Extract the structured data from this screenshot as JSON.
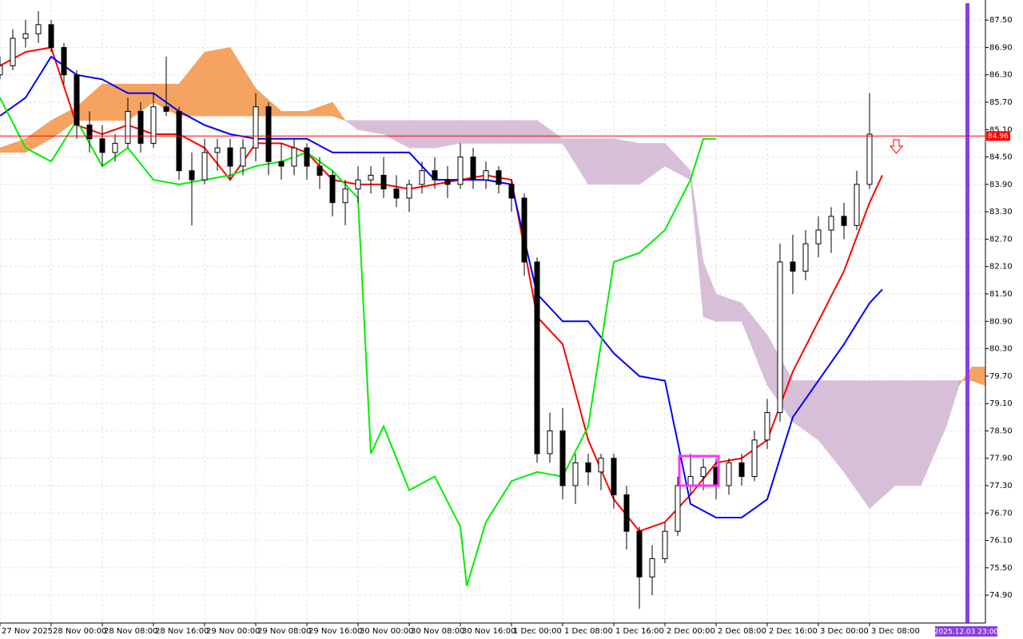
{
  "chart_data": {
    "type": "candlestick",
    "x": [
      0,
      2,
      4,
      6,
      8,
      10,
      12,
      14,
      16,
      18,
      20,
      22,
      24,
      26,
      28,
      30,
      32,
      34,
      36,
      38,
      40,
      42,
      44,
      46,
      48,
      50,
      52,
      54,
      56,
      58,
      60,
      62,
      64,
      66,
      68,
      70,
      72,
      74,
      76,
      78,
      80,
      82,
      84,
      86,
      88,
      90,
      92,
      94,
      96,
      98,
      100,
      102,
      104,
      106,
      108,
      110,
      112,
      114,
      116,
      118,
      120,
      122,
      124,
      126,
      128,
      130,
      132,
      134,
      136
    ],
    "open": [
      86.3,
      86.5,
      87.1,
      87.2,
      87.4,
      86.9,
      86.3,
      85.2,
      84.9,
      84.6,
      84.8,
      85.5,
      84.8,
      85.6,
      85.5,
      84.2,
      84.0,
      84.6,
      84.7,
      84.3,
      84.7,
      85.6,
      84.4,
      84.3,
      84.7,
      84.3,
      84.1,
      83.5,
      83.8,
      84.0,
      84.1,
      83.8,
      83.6,
      83.9,
      84.2,
      84.0,
      83.9,
      84.5,
      84.0,
      84.2,
      83.9,
      83.6,
      82.2,
      78.0,
      78.5,
      77.3,
      77.8,
      77.6,
      77.9,
      77.1,
      76.3,
      75.3,
      75.7,
      76.3,
      77.3,
      77.5,
      77.7,
      77.3,
      77.8,
      77.5,
      78.3,
      78.9,
      82.2,
      82.0,
      82.6,
      82.9,
      83.2,
      83.0,
      83.9
    ],
    "high": [
      86.7,
      87.3,
      87.5,
      87.7,
      87.5,
      87.0,
      86.4,
      85.5,
      85.2,
      85.0,
      85.8,
      85.7,
      85.9,
      86.7,
      85.6,
      84.6,
      84.9,
      84.9,
      84.9,
      84.9,
      85.9,
      85.7,
      84.8,
      84.9,
      84.8,
      84.5,
      84.2,
      84.0,
      84.3,
      84.3,
      84.5,
      84.1,
      84.0,
      84.4,
      84.5,
      84.3,
      84.8,
      84.7,
      84.4,
      84.3,
      84.0,
      83.7,
      82.3,
      78.9,
      79.0,
      78.0,
      78.0,
      78.0,
      78.0,
      77.3,
      76.4,
      76.0,
      76.5,
      77.5,
      78.0,
      77.9,
      77.9,
      77.9,
      78.0,
      78.5,
      79.2,
      82.6,
      82.8,
      82.9,
      83.2,
      83.4,
      83.5,
      84.2,
      85.9
    ],
    "low": [
      86.2,
      86.4,
      86.9,
      87.0,
      86.8,
      86.1,
      84.9,
      84.6,
      84.3,
      84.4,
      84.7,
      84.6,
      84.7,
      85.4,
      84.0,
      83.0,
      83.9,
      84.2,
      84.0,
      84.1,
      84.4,
      84.1,
      84.0,
      84.1,
      84.0,
      83.8,
      83.2,
      83.0,
      83.5,
      83.7,
      83.6,
      83.4,
      83.3,
      83.7,
      83.8,
      83.6,
      83.8,
      83.8,
      83.8,
      83.7,
      83.3,
      81.9,
      77.8,
      77.8,
      77.0,
      76.9,
      77.3,
      77.2,
      76.8,
      75.9,
      74.6,
      74.9,
      75.6,
      76.2,
      77.1,
      77.2,
      77.0,
      77.1,
      77.3,
      77.4,
      78.1,
      78.7,
      81.5,
      81.8,
      82.3,
      82.4,
      82.7,
      82.9,
      83.8
    ],
    "close": [
      86.5,
      87.1,
      87.2,
      87.4,
      86.9,
      86.3,
      85.2,
      84.9,
      84.6,
      84.8,
      85.5,
      84.8,
      85.6,
      85.5,
      84.2,
      84.0,
      84.6,
      84.7,
      84.3,
      84.7,
      85.6,
      84.4,
      84.3,
      84.7,
      84.3,
      84.1,
      83.5,
      83.8,
      84.0,
      84.1,
      83.8,
      83.6,
      83.9,
      84.2,
      84.0,
      83.9,
      84.5,
      84.0,
      84.2,
      83.9,
      83.6,
      82.2,
      78.0,
      78.5,
      77.3,
      77.8,
      77.6,
      77.9,
      77.1,
      76.3,
      75.3,
      75.7,
      76.3,
      77.3,
      77.5,
      77.7,
      77.3,
      77.8,
      77.5,
      78.3,
      78.9,
      82.2,
      82.0,
      82.6,
      82.9,
      83.2,
      83.0,
      83.9,
      85.0
    ],
    "bull_color": "#ffffff",
    "bear_color": "#000000",
    "lines": [
      {
        "color": "#ff0000",
        "x": [
          0,
          4,
          8,
          12,
          16,
          20,
          24,
          28,
          32,
          36,
          40,
          44,
          48,
          52,
          56,
          60,
          64,
          68,
          72,
          76,
          80,
          84,
          88,
          92,
          96,
          100,
          104,
          108,
          112,
          116,
          120,
          124,
          128,
          132,
          136,
          138
        ],
        "values": [
          86.5,
          86.8,
          86.9,
          85.2,
          85.0,
          85.2,
          85.0,
          85.0,
          84.7,
          84.0,
          84.8,
          84.8,
          84.6,
          84.0,
          83.9,
          83.9,
          83.8,
          83.9,
          84.0,
          84.1,
          84.0,
          81.0,
          80.4,
          78.3,
          77.0,
          76.3,
          76.5,
          77.1,
          77.8,
          77.9,
          78.3,
          79.8,
          80.9,
          82.0,
          83.5,
          84.1
        ]
      },
      {
        "color": "#0000ff",
        "x": [
          0,
          4,
          8,
          12,
          16,
          20,
          24,
          28,
          32,
          36,
          40,
          44,
          48,
          52,
          56,
          60,
          64,
          68,
          72,
          76,
          80,
          84,
          88,
          92,
          96,
          100,
          104,
          108,
          112,
          116,
          120,
          124,
          128,
          132,
          136,
          138
        ],
        "values": [
          85.4,
          85.8,
          86.7,
          86.3,
          86.2,
          85.9,
          85.9,
          85.5,
          85.2,
          85.0,
          84.9,
          84.9,
          84.9,
          84.6,
          84.6,
          84.6,
          84.6,
          84.0,
          84.0,
          84.0,
          83.9,
          81.5,
          80.9,
          80.9,
          80.2,
          79.7,
          79.6,
          76.9,
          76.6,
          76.6,
          77.0,
          78.8,
          79.6,
          80.4,
          81.3,
          81.6
        ]
      },
      {
        "color": "#00ee00",
        "x": [
          0,
          4,
          8,
          12,
          16,
          20,
          24,
          28,
          32,
          36,
          40,
          44,
          48,
          52,
          56,
          58,
          60,
          64,
          68,
          72,
          73,
          76,
          80,
          84,
          88,
          92,
          96,
          100,
          104,
          108,
          110,
          112
        ],
        "values": [
          85.8,
          84.7,
          84.4,
          85.3,
          84.3,
          84.7,
          84.0,
          83.9,
          84.0,
          84.1,
          84.3,
          84.4,
          84.6,
          84.2,
          83.6,
          78.0,
          78.6,
          77.2,
          77.5,
          76.4,
          75.1,
          76.5,
          77.4,
          77.6,
          77.5,
          78.6,
          82.2,
          82.4,
          82.9,
          84.0,
          84.9,
          84.9
        ]
      }
    ],
    "cloud": {
      "x": [
        0,
        4,
        8,
        12,
        16,
        20,
        24,
        28,
        32,
        36,
        40,
        44,
        48,
        52,
        54,
        56,
        60,
        64,
        68,
        72,
        76,
        80,
        84,
        88,
        92,
        96,
        100,
        104,
        108,
        110,
        112,
        116,
        120,
        124,
        128,
        132,
        136,
        140,
        144,
        148,
        150,
        152,
        154
      ],
      "span_a": [
        84.7,
        84.9,
        85.3,
        85.6,
        86.1,
        86.1,
        86.1,
        86.1,
        86.8,
        86.9,
        86.0,
        85.5,
        85.5,
        85.7,
        85.3,
        85.1,
        85.0,
        84.7,
        84.7,
        84.8,
        84.8,
        84.8,
        84.8,
        84.8,
        83.9,
        83.9,
        83.9,
        84.3,
        84.0,
        81.0,
        80.9,
        80.9,
        79.5,
        78.7,
        78.3,
        77.6,
        76.8,
        77.3,
        77.3,
        78.6,
        79.5,
        79.9,
        79.9
      ],
      "span_b": [
        84.6,
        84.6,
        84.9,
        85.3,
        85.3,
        85.3,
        85.7,
        85.4,
        85.4,
        85.4,
        85.4,
        85.4,
        85.4,
        85.4,
        85.3,
        85.3,
        85.3,
        85.3,
        85.3,
        85.3,
        85.3,
        85.3,
        85.3,
        84.9,
        84.9,
        84.9,
        84.8,
        84.8,
        84.2,
        82.2,
        81.5,
        81.3,
        80.6,
        79.6,
        79.6,
        79.6,
        79.6,
        79.6,
        79.6,
        79.6,
        79.6,
        79.6,
        79.5
      ],
      "up_color": "#f4a460",
      "down_color": "#d8bfd8"
    },
    "xlim": [
      0,
      154.125
    ],
    "ylim": [
      74.29,
      87.94
    ],
    "xticks": [
      {
        "value": 0,
        "label": "27 Nov 2025"
      },
      {
        "value": 8,
        "label": "28 Nov 00:00"
      },
      {
        "value": 16,
        "label": "28 Nov 08:00"
      },
      {
        "value": 24,
        "label": "28 Nov 16:00"
      },
      {
        "value": 32,
        "label": "29 Nov 00:00"
      },
      {
        "value": 40,
        "label": "29 Nov 08:00"
      },
      {
        "value": 48,
        "label": "29 Nov 16:00"
      },
      {
        "value": 56,
        "label": "30 Nov 00:00"
      },
      {
        "value": 64,
        "label": "30 Nov 08:00"
      },
      {
        "value": 72,
        "label": "30 Nov 16:00"
      },
      {
        "value": 80,
        "label": "1 Dec 00:00"
      },
      {
        "value": 88,
        "label": "1 Dec 08:00"
      },
      {
        "value": 96,
        "label": "1 Dec 16:00"
      },
      {
        "value": 104,
        "label": "2 Dec 00:00"
      },
      {
        "value": 112,
        "label": "2 Dec 08:00"
      },
      {
        "value": 120,
        "label": "2 Dec 16:00"
      },
      {
        "value": 128,
        "label": "3 Dec 00:00"
      },
      {
        "value": 136,
        "label": "3 Dec 08:00"
      }
    ],
    "yticks": [
      {
        "value": 74.9,
        "label": "74.90"
      },
      {
        "value": 75.5,
        "label": "75.50"
      },
      {
        "value": 76.1,
        "label": "76.10"
      },
      {
        "value": 76.7,
        "label": "76.70"
      },
      {
        "value": 77.3,
        "label": "77.30"
      },
      {
        "value": 77.9,
        "label": "77.90"
      },
      {
        "value": 78.5,
        "label": "78.50"
      },
      {
        "value": 79.1,
        "label": "79.10"
      },
      {
        "value": 79.7,
        "label": "79.70"
      },
      {
        "value": 80.3,
        "label": "80.30"
      },
      {
        "value": 80.9,
        "label": "80.90"
      },
      {
        "value": 81.5,
        "label": "81.50"
      },
      {
        "value": 82.1,
        "label": "82.10"
      },
      {
        "value": 82.7,
        "label": "82.70"
      },
      {
        "value": 83.3,
        "label": "83.30"
      },
      {
        "value": 83.9,
        "label": "83.90"
      },
      {
        "value": 84.5,
        "label": "84.50"
      },
      {
        "value": 85.1,
        "label": "85.10"
      },
      {
        "value": 85.7,
        "label": "85.70"
      },
      {
        "value": 86.3,
        "label": "86.30"
      },
      {
        "value": 86.9,
        "label": "86.90"
      },
      {
        "value": 87.5,
        "label": "87.50"
      }
    ],
    "grid": true,
    "current_price": 84.96,
    "price_line_color": "#ff0000",
    "time_label": "2025.12.03 23:00"
  }
}
